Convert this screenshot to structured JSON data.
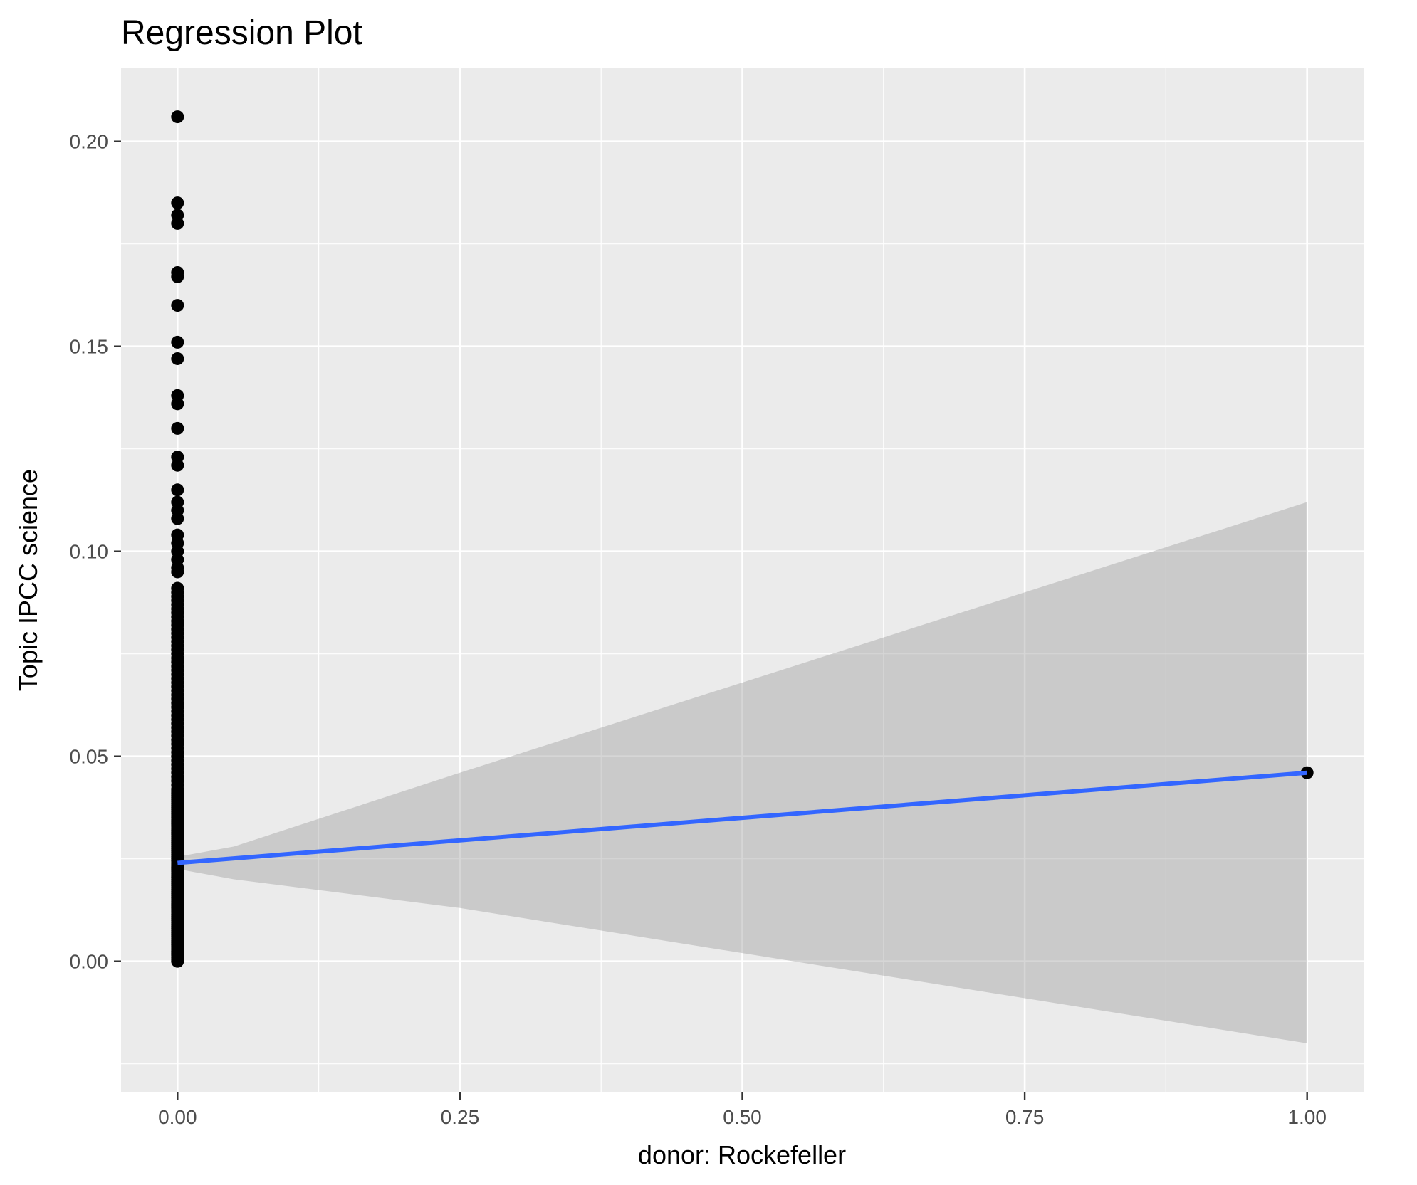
{
  "chart_data": {
    "type": "scatter",
    "title": "Regression Plot",
    "xlabel": "donor: Rockefeller",
    "ylabel": "Topic IPCC science",
    "xlim": [
      -0.05,
      1.05
    ],
    "ylim": [
      -0.032,
      0.218
    ],
    "x_ticks": [
      0.0,
      0.25,
      0.5,
      0.75,
      1.0
    ],
    "x_tick_labels": [
      "0.00",
      "0.25",
      "0.50",
      "0.75",
      "1.00"
    ],
    "y_ticks": [
      0.0,
      0.05,
      0.1,
      0.15,
      0.2
    ],
    "y_tick_labels": [
      "0.00",
      "0.05",
      "0.10",
      "0.15",
      "0.20"
    ],
    "grid": true,
    "background": "#ebebeb",
    "series": [
      {
        "kind": "points",
        "color": "#000000",
        "x": [
          0,
          0,
          0,
          0,
          0,
          0,
          0,
          0,
          0,
          0,
          0,
          0,
          0,
          0,
          0,
          0,
          0,
          0,
          0,
          0,
          0,
          0,
          0,
          0,
          0,
          0,
          0,
          0,
          0,
          0,
          0,
          0,
          0,
          0,
          0,
          0,
          0,
          0,
          0,
          0,
          0,
          0,
          0,
          0,
          0,
          0,
          0,
          0,
          0,
          0,
          0,
          0,
          0,
          0,
          0,
          0,
          0,
          0,
          0,
          0,
          0,
          0,
          0,
          0,
          0,
          0,
          0,
          0,
          0,
          0,
          0,
          0,
          0,
          0,
          0,
          0,
          0,
          0,
          0,
          0,
          0,
          0,
          0,
          0,
          0,
          0,
          0,
          0,
          0,
          0,
          0,
          0,
          0,
          0,
          0,
          0,
          0,
          0,
          0,
          0,
          0,
          0,
          0,
          0,
          0,
          0,
          0,
          0,
          0,
          0,
          0,
          0,
          0,
          0,
          0,
          0,
          0,
          0,
          0,
          0,
          0,
          0,
          0,
          0,
          0,
          0,
          0,
          0,
          0,
          0,
          0,
          0,
          0,
          0,
          0,
          0,
          0,
          0,
          0,
          0,
          0,
          0,
          0,
          0,
          0,
          0,
          0,
          0,
          0,
          0,
          0,
          0,
          0,
          0,
          0,
          0,
          0,
          0,
          1
        ],
        "y": [
          0.206,
          0.185,
          0.182,
          0.18,
          0.168,
          0.167,
          0.16,
          0.151,
          0.147,
          0.138,
          0.136,
          0.13,
          0.123,
          0.121,
          0.115,
          0.112,
          0.11,
          0.108,
          0.104,
          0.102,
          0.1,
          0.098,
          0.096,
          0.095,
          0.091,
          0.09,
          0.089,
          0.088,
          0.087,
          0.086,
          0.085,
          0.084,
          0.083,
          0.082,
          0.081,
          0.08,
          0.079,
          0.078,
          0.077,
          0.076,
          0.075,
          0.074,
          0.073,
          0.072,
          0.071,
          0.07,
          0.069,
          0.068,
          0.067,
          0.066,
          0.065,
          0.064,
          0.063,
          0.062,
          0.061,
          0.06,
          0.059,
          0.058,
          0.057,
          0.056,
          0.055,
          0.054,
          0.053,
          0.052,
          0.051,
          0.05,
          0.049,
          0.048,
          0.047,
          0.046,
          0.045,
          0.044,
          0.043,
          0.042,
          0.041,
          0.04,
          0.039,
          0.038,
          0.037,
          0.036,
          0.035,
          0.034,
          0.033,
          0.032,
          0.031,
          0.03,
          0.029,
          0.028,
          0.027,
          0.026,
          0.025,
          0.024,
          0.023,
          0.022,
          0.021,
          0.02,
          0.019,
          0.018,
          0.017,
          0.016,
          0.015,
          0.014,
          0.013,
          0.012,
          0.011,
          0.01,
          0.009,
          0.008,
          0.007,
          0.006,
          0.005,
          0.004,
          0.003,
          0.002,
          0.001,
          0.0,
          0.0005,
          0.0015,
          0.0025,
          0.0035,
          0.0045,
          0.0055,
          0.0065,
          0.0075,
          0.0085,
          0.0095,
          0.0105,
          0.0115,
          0.0125,
          0.0135,
          0.0145,
          0.0155,
          0.0165,
          0.0175,
          0.0185,
          0.0195,
          0.0205,
          0.0215,
          0.0225,
          0.0235,
          0.0245,
          0.0255,
          0.0265,
          0.0275,
          0.0285,
          0.0295,
          0.0305,
          0.0315,
          0.0325,
          0.0335,
          0.0345,
          0.0355,
          0.0365,
          0.0375,
          0.0385,
          0.0395,
          0.0405,
          0.0415,
          0.046
        ]
      },
      {
        "kind": "regression-line",
        "color": "#3366ff",
        "x": [
          0,
          1
        ],
        "y": [
          0.024,
          0.046
        ]
      },
      {
        "kind": "confidence-band",
        "color": "#999999",
        "x": [
          0.0,
          0.05,
          0.25,
          0.5,
          0.75,
          1.0
        ],
        "lower": [
          0.0225,
          0.02,
          0.013,
          0.002,
          -0.009,
          -0.02
        ],
        "upper": [
          0.0255,
          0.028,
          0.046,
          0.068,
          0.09,
          0.112
        ]
      }
    ]
  }
}
